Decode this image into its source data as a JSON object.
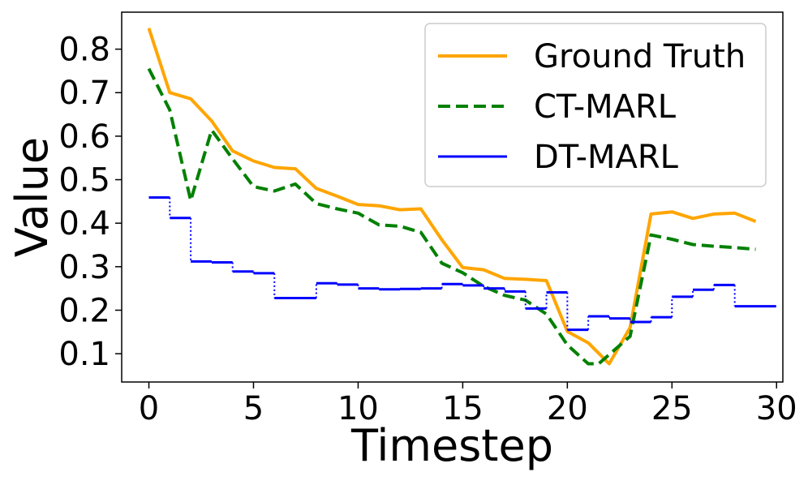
{
  "chart_data": {
    "type": "line",
    "xlabel": "Timestep",
    "ylabel": "Value",
    "xlim": [
      -1.3,
      30.3
    ],
    "ylim": [
      0.035,
      0.885
    ],
    "xticks": [
      0,
      5,
      10,
      15,
      20,
      25,
      30
    ],
    "yticks": [
      0.1,
      0.2,
      0.3,
      0.4,
      0.5,
      0.6,
      0.7,
      0.8
    ],
    "xtick_labels": [
      "0",
      "5",
      "10",
      "15",
      "20",
      "25",
      "30"
    ],
    "ytick_labels": [
      "0.1",
      "0.2",
      "0.3",
      "0.4",
      "0.5",
      "0.6",
      "0.7",
      "0.8"
    ],
    "grid": false,
    "legend_position": "top-right",
    "x": [
      0,
      1,
      2,
      3,
      4,
      5,
      6,
      7,
      8,
      9,
      10,
      11,
      12,
      13,
      14,
      15,
      16,
      17,
      18,
      19,
      20,
      21,
      22,
      23,
      24,
      25,
      26,
      27,
      28,
      29
    ],
    "series": [
      {
        "name": "Ground Truth",
        "color": "#ffa500",
        "style": "solid",
        "values": [
          0.848,
          0.7,
          0.686,
          0.635,
          0.566,
          0.543,
          0.528,
          0.525,
          0.48,
          0.462,
          0.443,
          0.44,
          0.431,
          0.433,
          0.362,
          0.298,
          0.293,
          0.273,
          0.271,
          0.268,
          0.151,
          0.125,
          0.077,
          0.16,
          0.421,
          0.426,
          0.411,
          0.421,
          0.423,
          0.404
        ]
      },
      {
        "name": "CT-MARL",
        "color": "#008000",
        "style": "dashed",
        "values": [
          0.755,
          0.66,
          0.452,
          0.614,
          0.548,
          0.484,
          0.474,
          0.49,
          0.445,
          0.433,
          0.423,
          0.396,
          0.393,
          0.379,
          0.308,
          0.286,
          0.255,
          0.234,
          0.223,
          0.191,
          0.12,
          0.077,
          0.077,
          0.14,
          0.373,
          0.363,
          0.351,
          0.347,
          0.344,
          0.34
        ],
        "x": [
          0,
          1,
          2,
          3,
          4,
          5,
          6,
          7,
          8,
          9,
          10,
          11,
          12,
          13,
          14,
          15,
          16,
          17,
          18,
          19,
          20,
          21,
          21.5,
          23,
          24,
          25,
          26,
          27,
          28,
          29
        ]
      },
      {
        "name": "DT-MARL",
        "color": "#0000ff",
        "style": "step",
        "values": [
          0.459,
          0.412,
          0.312,
          0.31,
          0.289,
          0.285,
          0.228,
          0.228,
          0.262,
          0.259,
          0.25,
          0.248,
          0.249,
          0.25,
          0.26,
          0.257,
          0.25,
          0.243,
          0.204,
          0.241,
          0.155,
          0.186,
          0.181,
          0.173,
          0.184,
          0.231,
          0.247,
          0.258,
          0.209,
          0.209
        ]
      }
    ]
  }
}
